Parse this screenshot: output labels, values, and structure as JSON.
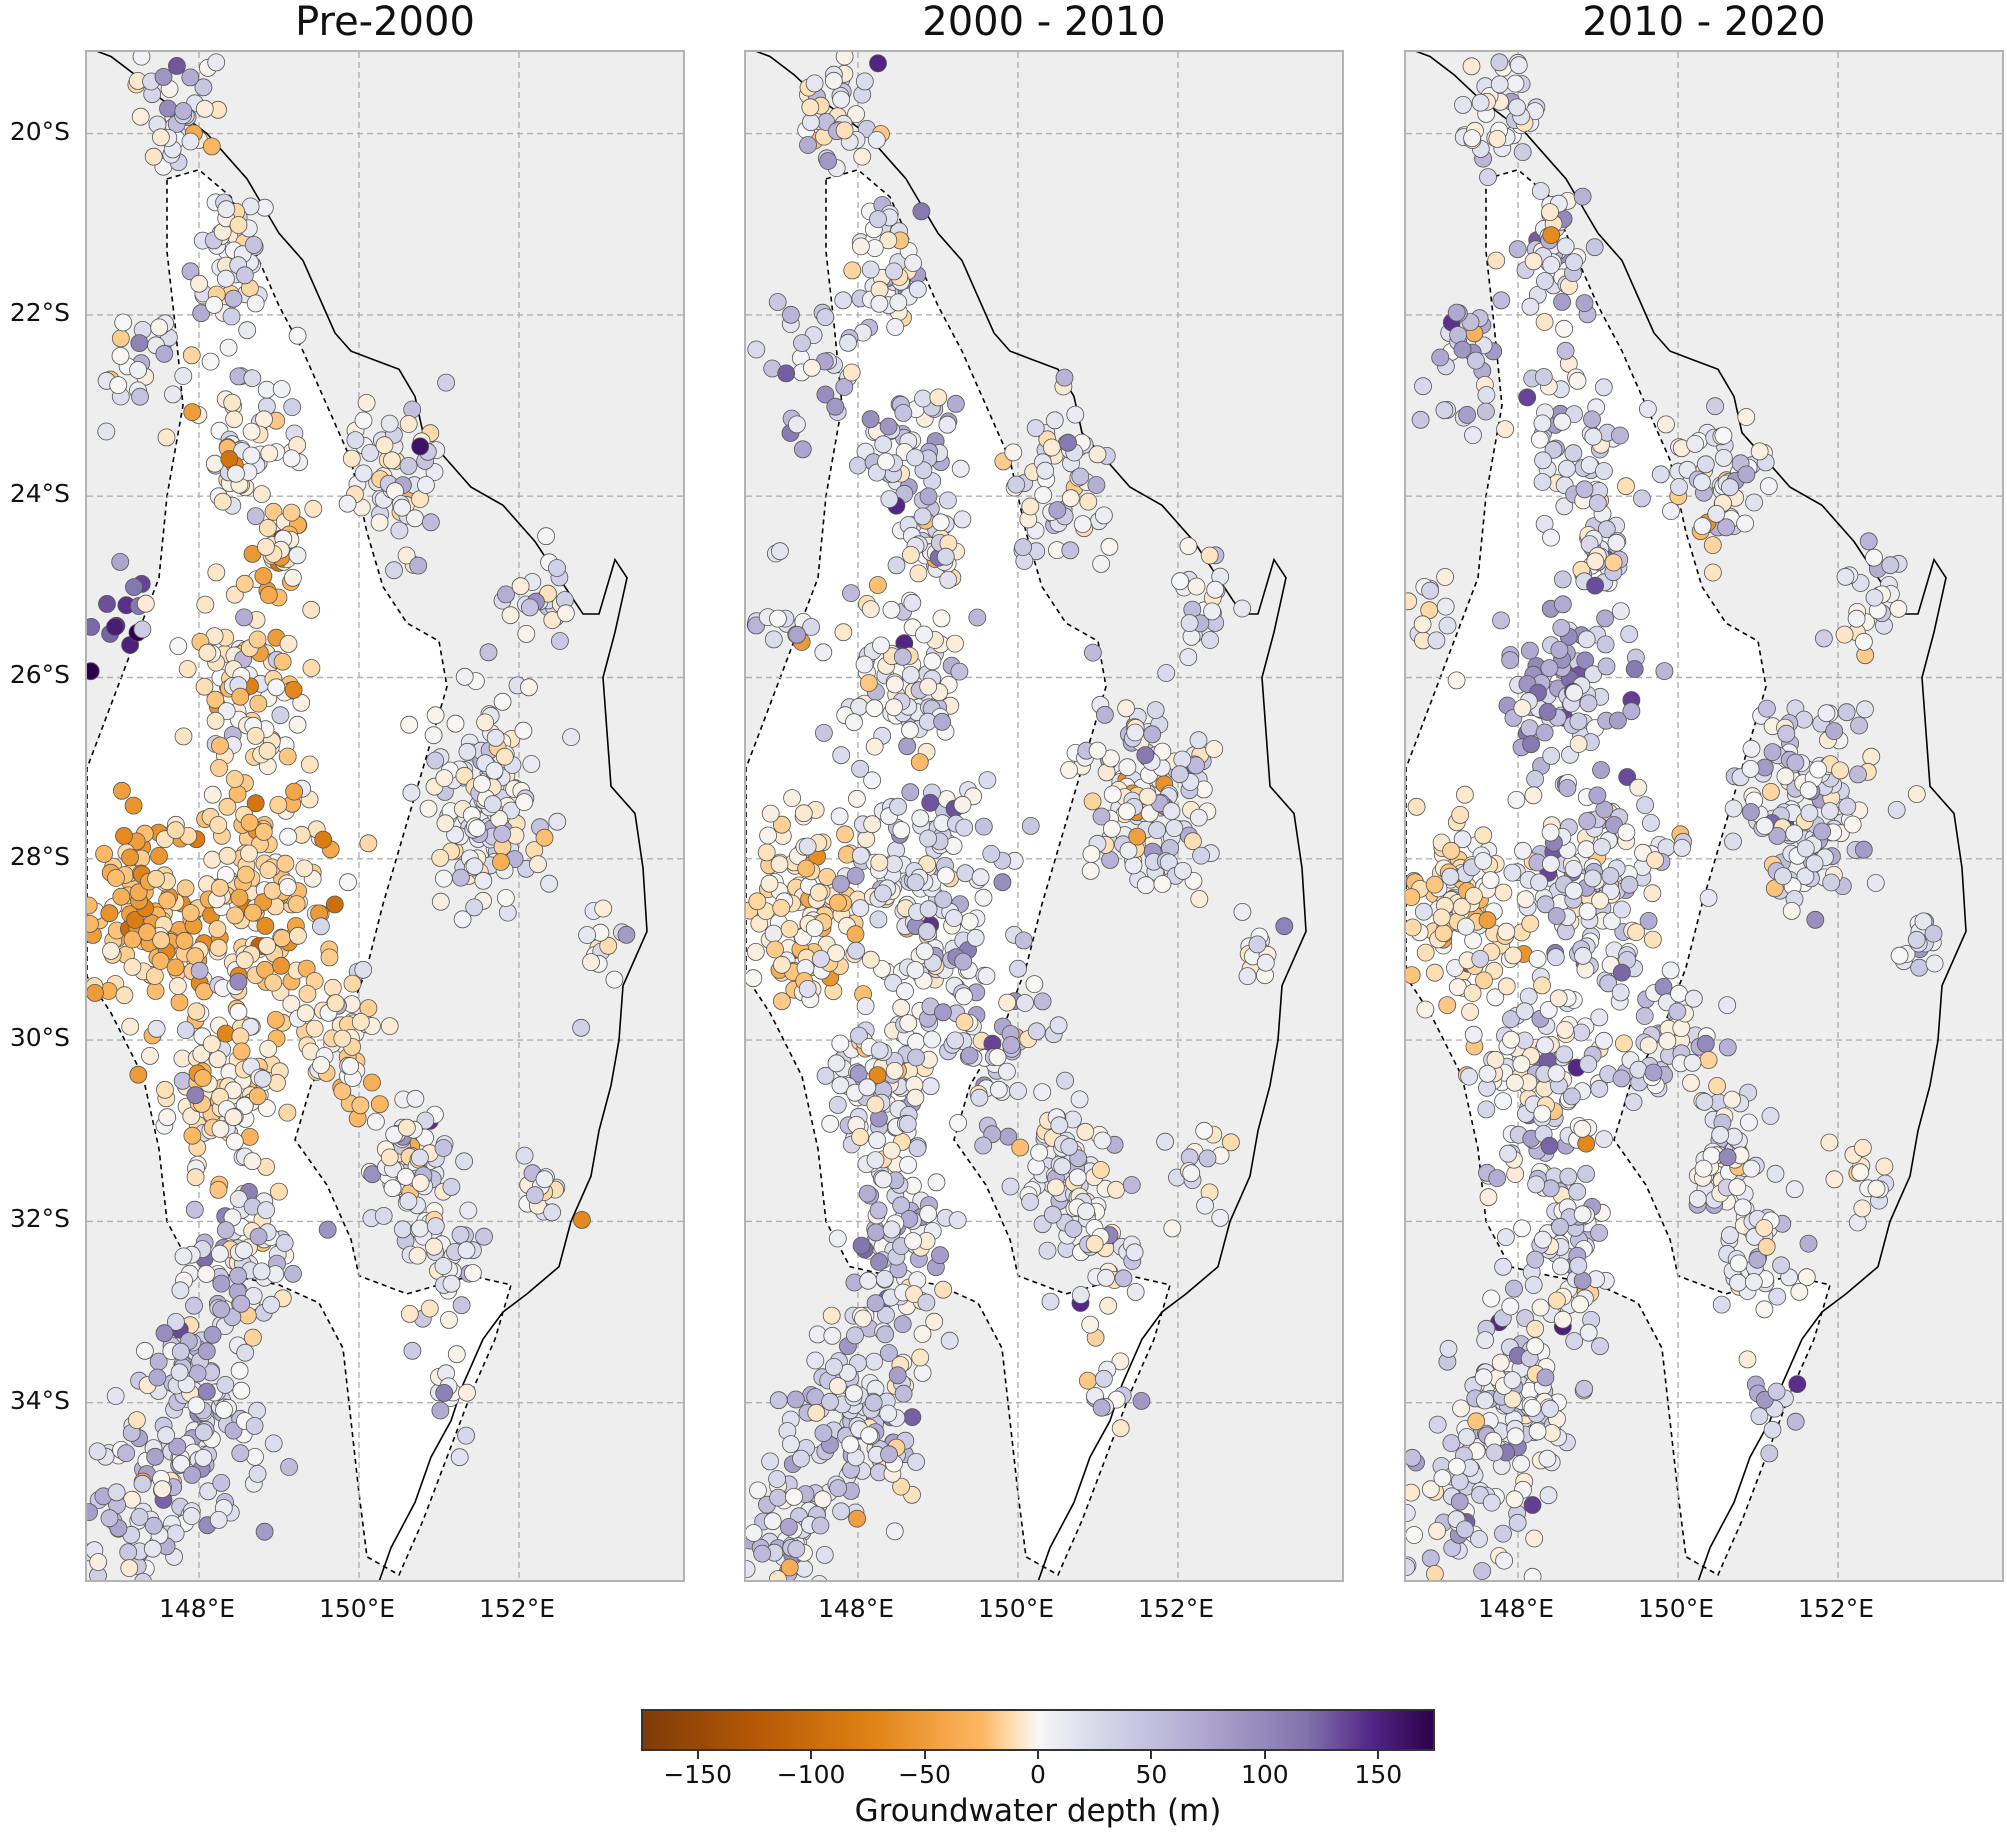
{
  "panels": [
    {
      "title": "Pre-2000",
      "seed": 7,
      "profile": "early"
    },
    {
      "title": "2000 - 2010",
      "seed": 19,
      "profile": "mid"
    },
    {
      "title": "2010 - 2020",
      "seed": 31,
      "profile": "late"
    }
  ],
  "map_extent": {
    "lon_min": 146.6,
    "lon_max": 154.1,
    "lat_min": -36.0,
    "lat_max": -19.1
  },
  "lat_ticks": [
    {
      "value": -20,
      "label": "20°S"
    },
    {
      "value": -22,
      "label": "22°S"
    },
    {
      "value": -24,
      "label": "24°S"
    },
    {
      "value": -26,
      "label": "26°S"
    },
    {
      "value": -28,
      "label": "28°S"
    },
    {
      "value": -30,
      "label": "30°S"
    },
    {
      "value": -32,
      "label": "32°S"
    },
    {
      "value": -34,
      "label": "34°S"
    }
  ],
  "lon_ticks": [
    {
      "value": 148,
      "label": "148°E"
    },
    {
      "value": 150,
      "label": "150°E"
    },
    {
      "value": 152,
      "label": "152°E"
    }
  ],
  "colorbar": {
    "title": "Groundwater depth (m)",
    "min": -175,
    "max": 175,
    "ticks": [
      {
        "value": -150,
        "label": "−150"
      },
      {
        "value": -100,
        "label": "−100"
      },
      {
        "value": -50,
        "label": "−50"
      },
      {
        "value": 0,
        "label": "0"
      },
      {
        "value": 50,
        "label": "50"
      },
      {
        "value": 100,
        "label": "100"
      },
      {
        "value": 150,
        "label": "150"
      }
    ],
    "colors": [
      "#7f3b08",
      "#b35806",
      "#e08214",
      "#fdb863",
      "#fee0b6",
      "#f7f7f7",
      "#d8daeb",
      "#b2abd2",
      "#8073ac",
      "#542788",
      "#2d004b"
    ]
  },
  "colors": {
    "ocean_background": "#eeeeee",
    "basin_fill": "#ffffff",
    "gridline": "#b0b0b0",
    "coastline": "#000000"
  }
}
